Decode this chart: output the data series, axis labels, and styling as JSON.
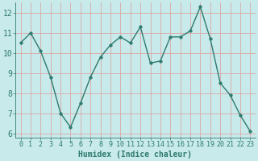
{
  "x": [
    0,
    1,
    2,
    3,
    4,
    5,
    6,
    7,
    8,
    9,
    10,
    11,
    12,
    13,
    14,
    15,
    16,
    17,
    18,
    19,
    20,
    21,
    22,
    23
  ],
  "y": [
    10.5,
    11.0,
    10.1,
    8.8,
    7.0,
    6.3,
    7.5,
    8.8,
    9.8,
    10.4,
    10.8,
    10.5,
    11.3,
    9.5,
    9.6,
    10.8,
    10.8,
    11.1,
    12.3,
    10.7,
    8.5,
    7.9,
    6.9,
    6.1
  ],
  "line_color": "#2d7a6e",
  "marker": "o",
  "bg_color": "#c8eaea",
  "grid_color": "#dba8a8",
  "xlabel": "Humidex (Indice chaleur)",
  "ylim": [
    5.8,
    12.5
  ],
  "xlim": [
    -0.5,
    23.5
  ],
  "yticks": [
    6,
    7,
    8,
    9,
    10,
    11,
    12
  ],
  "xticks": [
    0,
    1,
    2,
    3,
    4,
    5,
    6,
    7,
    8,
    9,
    10,
    11,
    12,
    13,
    14,
    15,
    16,
    17,
    18,
    19,
    20,
    21,
    22,
    23
  ],
  "xlabel_fontsize": 7,
  "tick_fontsize": 6,
  "marker_size": 2.5,
  "line_width": 1.0
}
